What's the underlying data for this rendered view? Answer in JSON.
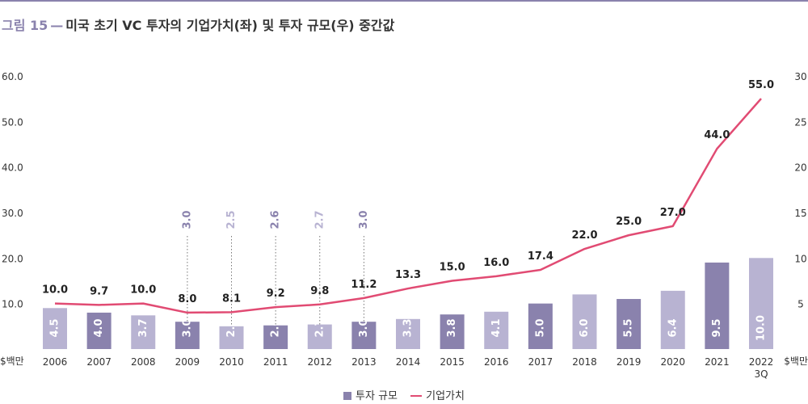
{
  "figure": {
    "label": "그림 15",
    "dash": "—",
    "title": "미국 초기 VC 투자의 기업가치(좌) 및 투자 규모(우) 중간값"
  },
  "colors": {
    "bar_dark": "#8a82ad",
    "bar_light": "#b8b3d2",
    "line": "#e14b73",
    "topline": "#8a82ad",
    "text": "#333333"
  },
  "chart_data": {
    "type": "bar+line",
    "categories": [
      "2006",
      "2007",
      "2008",
      "2009",
      "2010",
      "2011",
      "2012",
      "2013",
      "2014",
      "2015",
      "2016",
      "2017",
      "2018",
      "2019",
      "2020",
      "2021",
      "2022\n3Q"
    ],
    "series": [
      {
        "name": "투자 규모",
        "type": "bar",
        "axis": "right",
        "values": [
          4.5,
          4.0,
          3.7,
          3.0,
          2.5,
          2.6,
          2.7,
          3.0,
          3.3,
          3.8,
          4.1,
          5.0,
          6.0,
          5.5,
          6.4,
          9.5,
          10.0
        ],
        "labels": [
          "4.5",
          "4.0",
          "3.7",
          "3.0",
          "2.5",
          "2.6",
          "2.7",
          "3.0",
          "3.3",
          "3.8",
          "4.1",
          "5.0",
          "6.0",
          "5.5",
          "6.4",
          "9.5",
          "10.0"
        ],
        "shade": [
          "light",
          "dark",
          "light",
          "dark",
          "light",
          "dark",
          "light",
          "dark",
          "light",
          "dark",
          "light",
          "dark",
          "light",
          "dark",
          "light",
          "dark",
          "light"
        ]
      },
      {
        "name": "기업가치",
        "type": "line",
        "axis": "left",
        "values": [
          10.0,
          9.7,
          10.0,
          8.0,
          8.1,
          9.2,
          9.8,
          11.2,
          13.3,
          15.0,
          16.0,
          17.4,
          22.0,
          25.0,
          27.0,
          44.0,
          55.0
        ],
        "labels": [
          "10.0",
          "9.7",
          "10.0",
          "8.0",
          "8.1",
          "9.2",
          "9.8",
          "11.2",
          "13.3",
          "15.0",
          "16.0",
          "17.4",
          "22.0",
          "25.0",
          "27.0",
          "44.0",
          "55.0"
        ]
      }
    ],
    "callout_bars": [
      3,
      4,
      5,
      6,
      7
    ],
    "left_axis": {
      "unit": "$백만",
      "ticks": [
        "10.0",
        "20.0",
        "30.0",
        "40.0",
        "50.0",
        "60.0"
      ],
      "range": [
        0,
        63
      ]
    },
    "right_axis": {
      "unit": "$백만",
      "ticks": [
        "5",
        "10",
        "15",
        "20",
        "25",
        "30"
      ],
      "range": [
        0,
        31.5
      ]
    },
    "legend": [
      "투자 규모",
      "기업가치"
    ],
    "legend_position": "bottom-center",
    "grid": false
  }
}
